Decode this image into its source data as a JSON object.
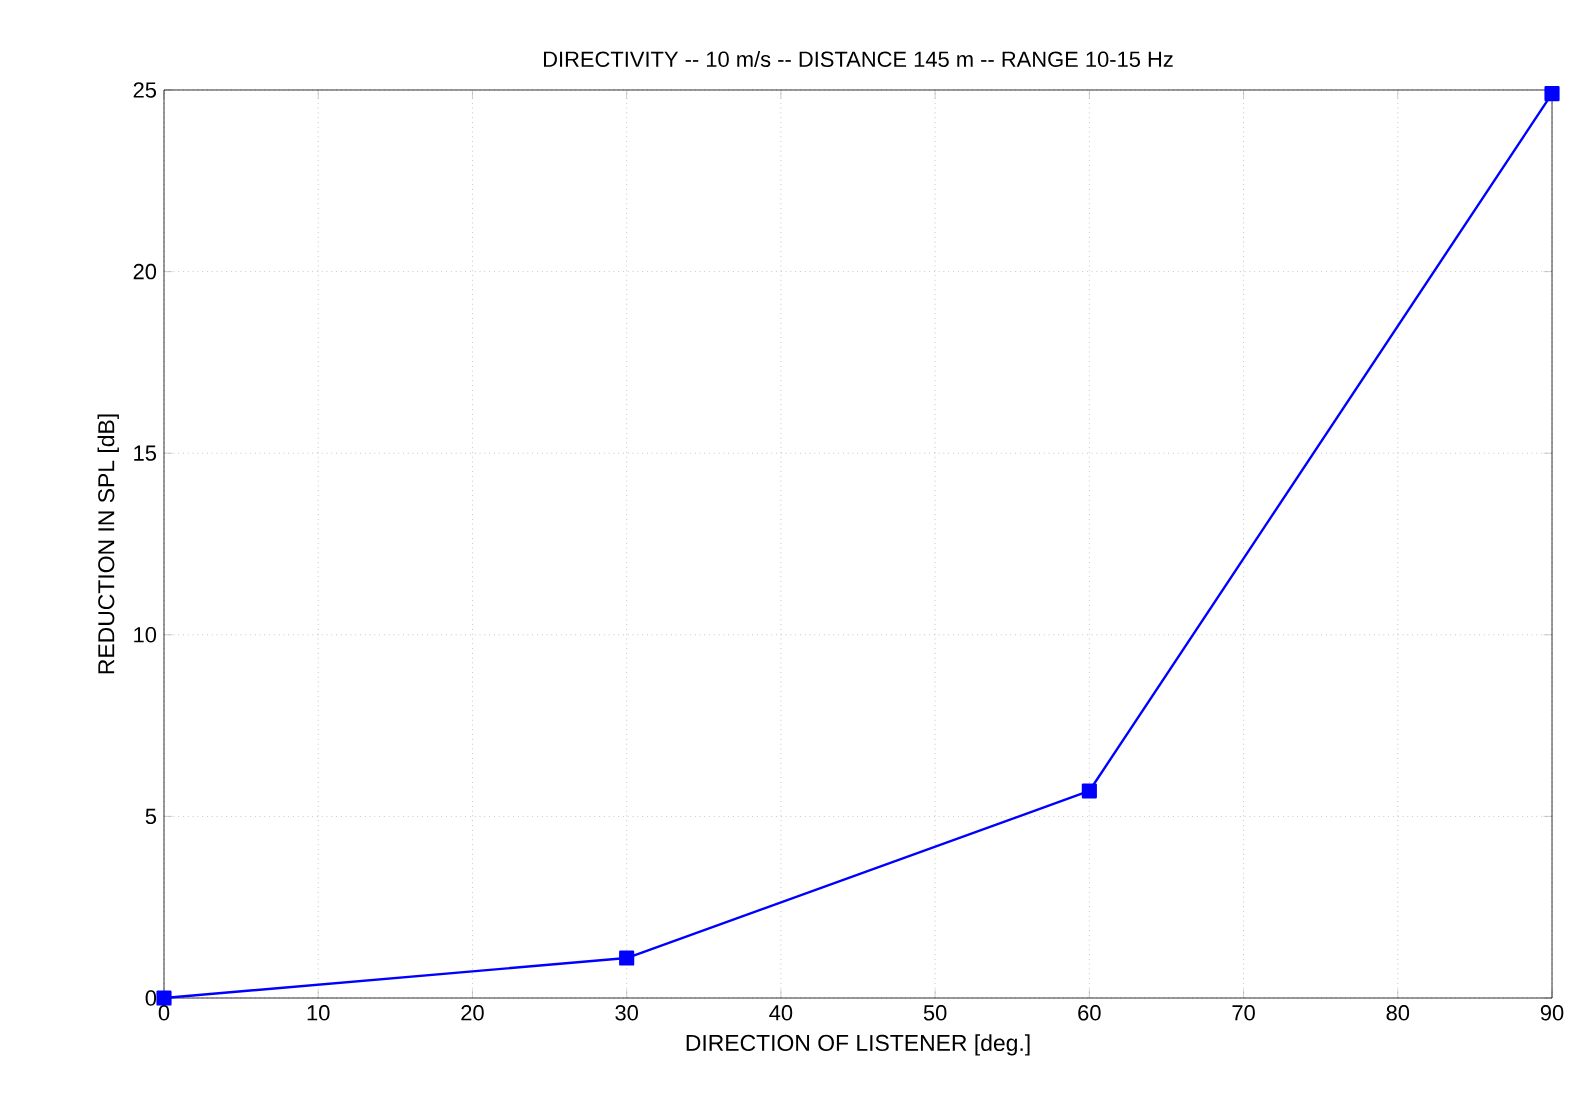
{
  "chart_data": {
    "type": "line",
    "title": "DIRECTIVITY -- 10 m/s -- DISTANCE 145 m -- RANGE 10-15 Hz",
    "xlabel": "DIRECTION OF LISTENER [deg.]",
    "ylabel": "REDUCTION IN SPL [dB]",
    "x": [
      0,
      30,
      60,
      90
    ],
    "series": [
      {
        "color": "#0000ff",
        "values": [
          0,
          1.1,
          5.7,
          24.9
        ]
      }
    ],
    "xlim": [
      0,
      90
    ],
    "ylim": [
      0,
      25
    ],
    "xticks": [
      0,
      10,
      20,
      30,
      40,
      50,
      60,
      70,
      80,
      90
    ],
    "yticks": [
      0,
      5,
      10,
      15,
      20,
      25
    ],
    "grid": true,
    "marker": "square",
    "line_style": "solid"
  }
}
